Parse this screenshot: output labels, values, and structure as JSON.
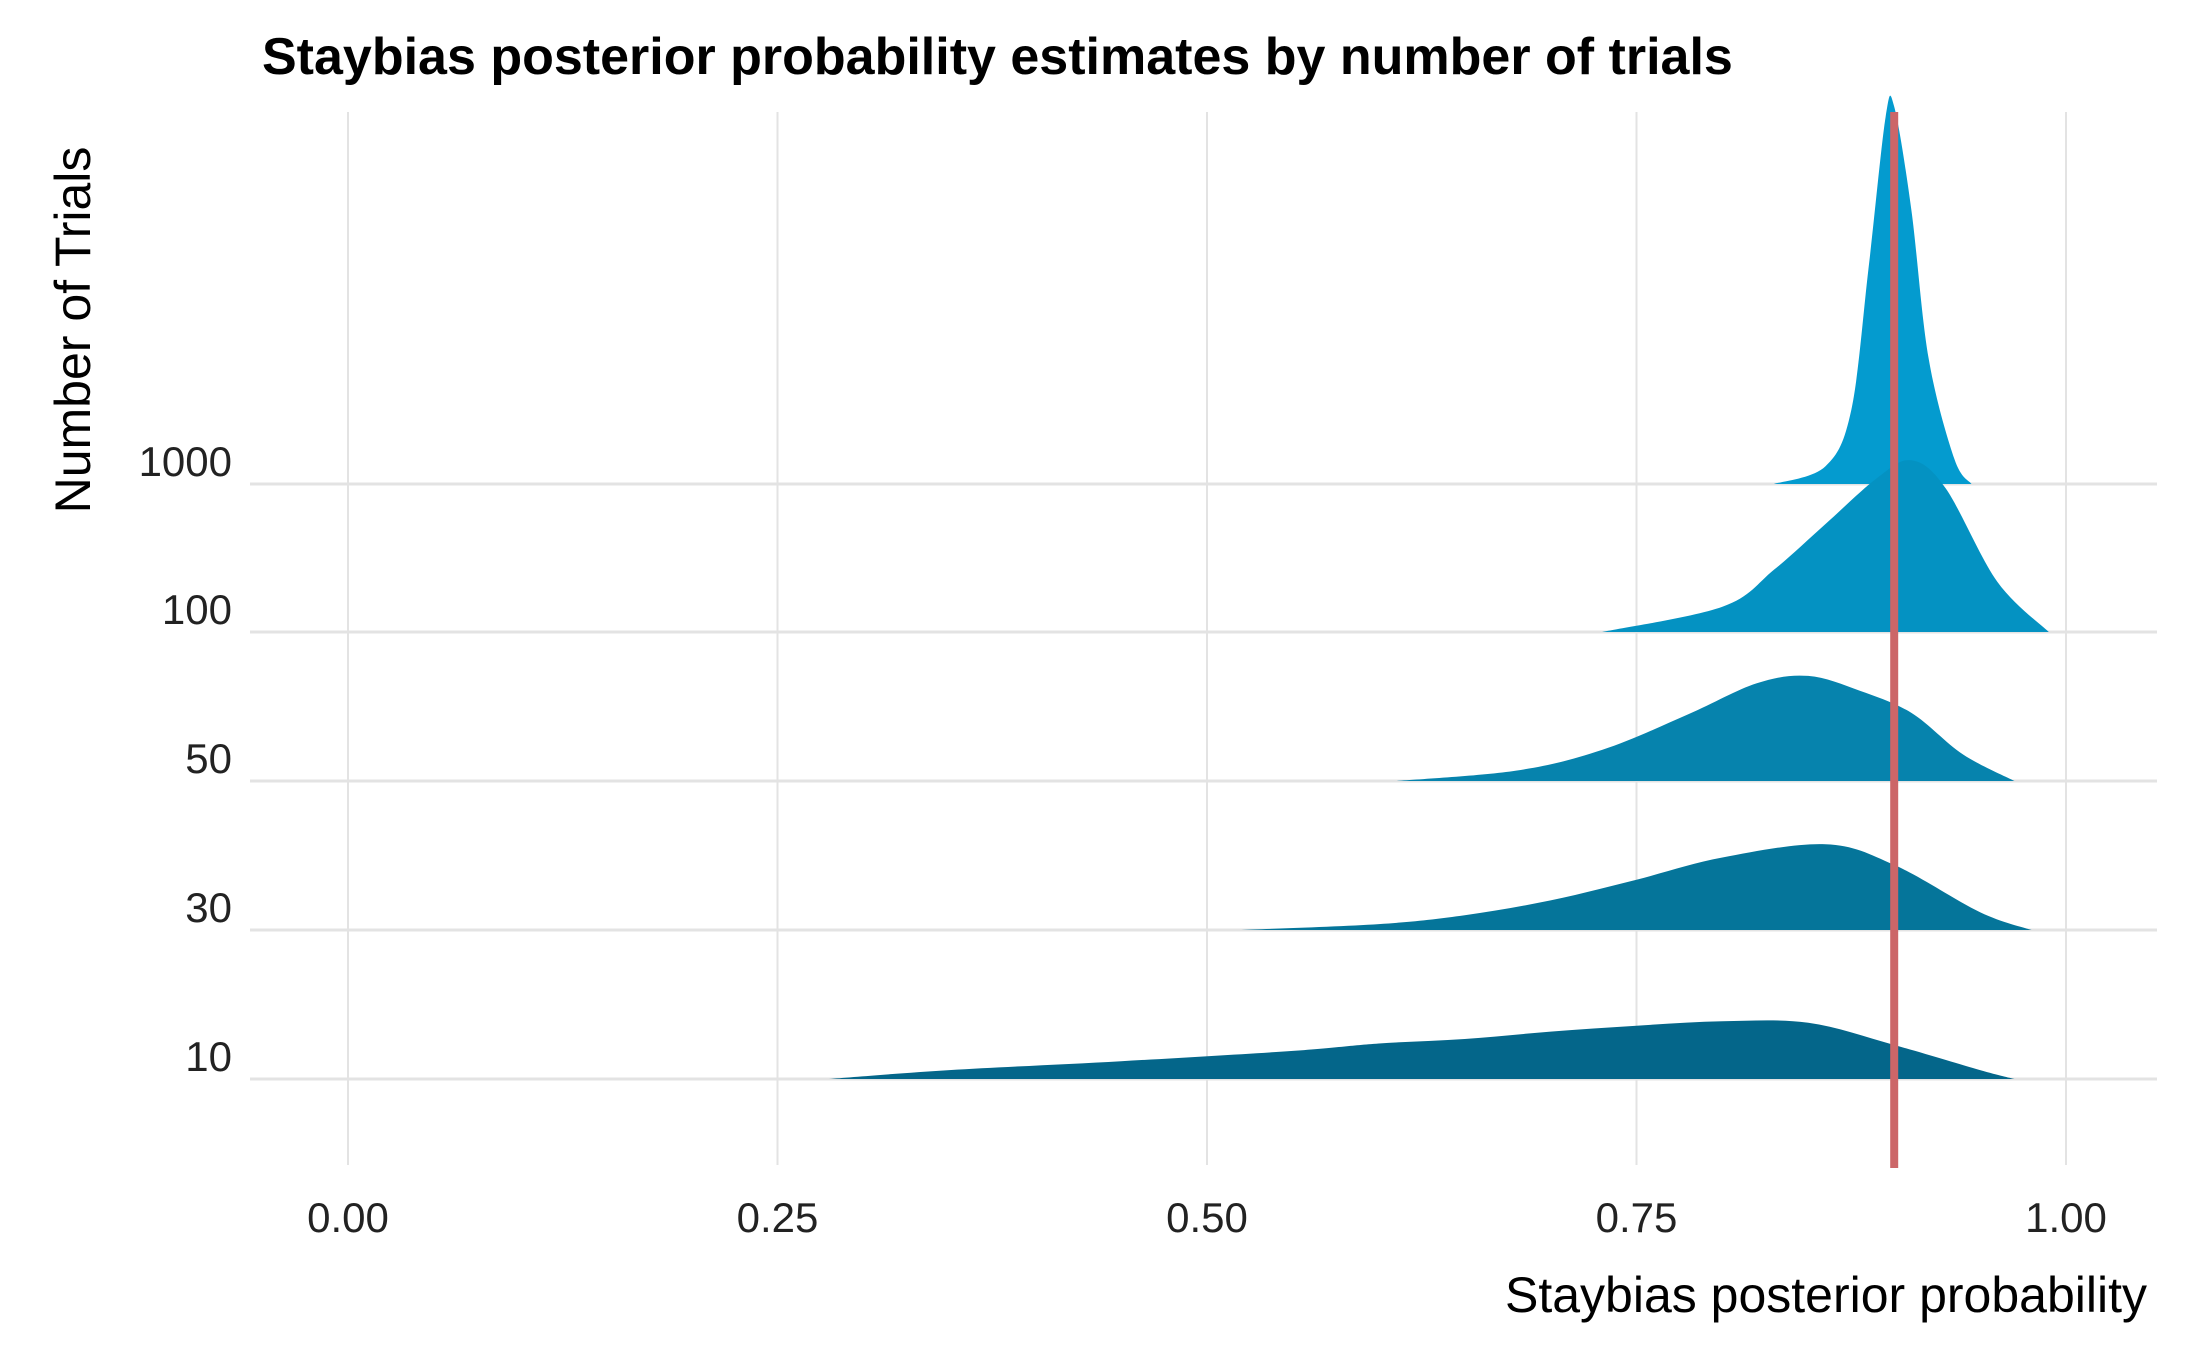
{
  "chart_data": {
    "type": "ridgeline",
    "title": "Staybias posterior probability estimates by number of trials",
    "xlabel": "Staybias posterior probability",
    "ylabel": "Number of Trials",
    "xlim": [
      0,
      1
    ],
    "x_ticks": [
      "0.00",
      "0.25",
      "0.50",
      "0.75",
      "1.00"
    ],
    "x_tick_values": [
      0,
      0.25,
      0.5,
      0.75,
      1.0
    ],
    "grid": true,
    "legend": "none",
    "reference_line": {
      "x": 0.9,
      "color": "#cc6668"
    },
    "series": [
      {
        "name": "10",
        "color": "#04668a",
        "points": [
          [
            0.28,
            0.0
          ],
          [
            0.35,
            0.06
          ],
          [
            0.45,
            0.12
          ],
          [
            0.55,
            0.19
          ],
          [
            0.6,
            0.24
          ],
          [
            0.65,
            0.27
          ],
          [
            0.7,
            0.32
          ],
          [
            0.75,
            0.36
          ],
          [
            0.8,
            0.39
          ],
          [
            0.85,
            0.38
          ],
          [
            0.9,
            0.23
          ],
          [
            0.95,
            0.06
          ],
          [
            0.97,
            0.0
          ]
        ]
      },
      {
        "name": "30",
        "color": "#05759a",
        "points": [
          [
            0.52,
            0.0
          ],
          [
            0.6,
            0.04
          ],
          [
            0.65,
            0.1
          ],
          [
            0.7,
            0.2
          ],
          [
            0.75,
            0.34
          ],
          [
            0.8,
            0.49
          ],
          [
            0.86,
            0.58
          ],
          [
            0.9,
            0.44
          ],
          [
            0.95,
            0.12
          ],
          [
            0.98,
            0.0
          ]
        ]
      },
      {
        "name": "50",
        "color": "#0683ad",
        "points": [
          [
            0.61,
            0.0
          ],
          [
            0.68,
            0.07
          ],
          [
            0.73,
            0.21
          ],
          [
            0.78,
            0.45
          ],
          [
            0.82,
            0.66
          ],
          [
            0.85,
            0.71
          ],
          [
            0.88,
            0.61
          ],
          [
            0.91,
            0.46
          ],
          [
            0.94,
            0.18
          ],
          [
            0.97,
            0.0
          ]
        ]
      },
      {
        "name": "100",
        "color": "#0492c2",
        "points": [
          [
            0.73,
            0.0
          ],
          [
            0.8,
            0.17
          ],
          [
            0.83,
            0.42
          ],
          [
            0.86,
            0.73
          ],
          [
            0.89,
            1.04
          ],
          [
            0.91,
            1.16
          ],
          [
            0.93,
            0.97
          ],
          [
            0.96,
            0.34
          ],
          [
            0.99,
            0.0
          ]
        ]
      },
      {
        "name": "1000",
        "color": "#049bcf",
        "points": [
          [
            0.83,
            0.0
          ],
          [
            0.86,
            0.12
          ],
          [
            0.875,
            0.5
          ],
          [
            0.885,
            1.45
          ],
          [
            0.895,
            2.48
          ],
          [
            0.9,
            2.55
          ],
          [
            0.91,
            1.85
          ],
          [
            0.92,
            0.85
          ],
          [
            0.935,
            0.17
          ],
          [
            0.945,
            0.0
          ]
        ]
      }
    ]
  }
}
